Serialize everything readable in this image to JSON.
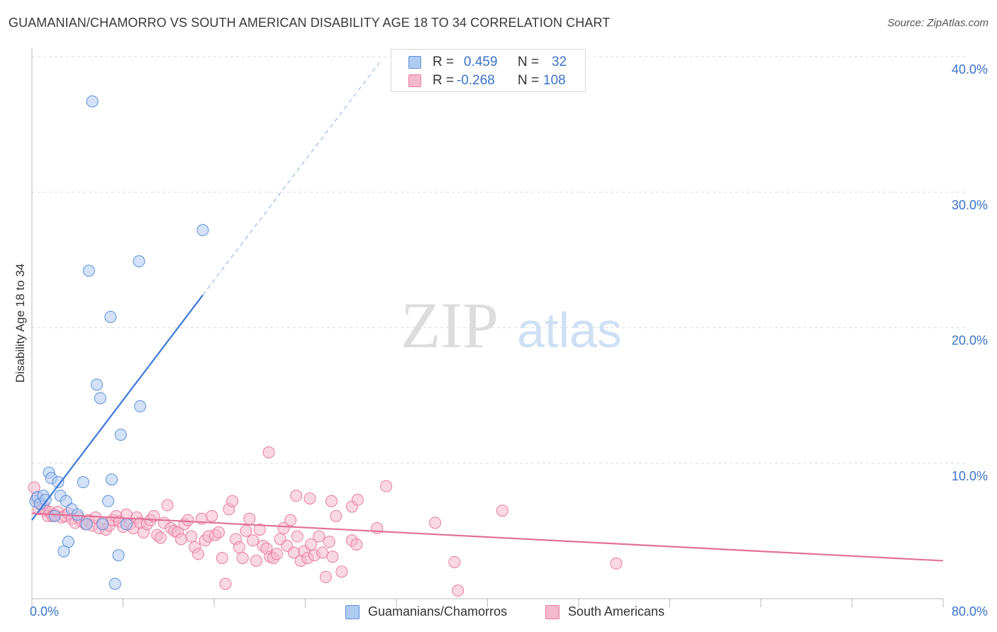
{
  "header": {
    "title": "GUAMANIAN/CHAMORRO VS SOUTH AMERICAN DISABILITY AGE 18 TO 34 CORRELATION CHART",
    "source": "Source: ZipAtlas.com"
  },
  "legend": {
    "r_label": "R =",
    "n_label": "N =",
    "rows": [
      {
        "r": "0.459",
        "n": "32"
      },
      {
        "r": "-0.268",
        "n": "108"
      }
    ]
  },
  "bottom_legend": [
    "Guamanians/Chamorros",
    "South Americans"
  ],
  "watermark": {
    "zip": "ZIP",
    "atlas": "atlas"
  },
  "colors": {
    "blue_fill": "#aecbf2",
    "blue_stroke": "#5e8fd6",
    "blue_line": "#3c78d8",
    "pink_fill": "#f6b8cc",
    "pink_stroke": "#e87ba0",
    "pink_line": "#e2709a",
    "value_text": "#3b73c8",
    "grid": "#dddddd"
  },
  "chart_data": {
    "type": "scatter",
    "title": "GUAMANIAN/CHAMORRO VS SOUTH AMERICAN DISABILITY AGE 18 TO 34 CORRELATION CHART",
    "xlabel": "",
    "ylabel": "Disability Age 18 to 34",
    "xlim": [
      0,
      80
    ],
    "ylim": [
      0,
      40
    ],
    "x_tick_labels": [
      "0.0%",
      "80.0%"
    ],
    "y_ticks": [
      10,
      20,
      30,
      40
    ],
    "y_tick_labels": [
      "10.0%",
      "20.0%",
      "30.0%",
      "40.0%"
    ],
    "grid": true,
    "legend_position": "top-center",
    "series": [
      {
        "name": "Guamanians/Chamorros",
        "r": 0.459,
        "n": 32,
        "color": "blue",
        "trend": {
          "x0": 0,
          "y0": 5.8,
          "x1": 15,
          "y1": 22.4,
          "dash_to_x": 30.5
        },
        "points": [
          [
            0.3,
            7.2
          ],
          [
            0.5,
            7.5
          ],
          [
            0.7,
            7.0
          ],
          [
            1.0,
            7.6
          ],
          [
            1.2,
            7.3
          ],
          [
            1.5,
            9.3
          ],
          [
            1.7,
            8.9
          ],
          [
            2.0,
            6.1
          ],
          [
            2.3,
            8.6
          ],
          [
            2.5,
            7.6
          ],
          [
            3.0,
            7.2
          ],
          [
            3.2,
            4.2
          ],
          [
            3.5,
            6.6
          ],
          [
            4.0,
            6.2
          ],
          [
            4.5,
            8.6
          ],
          [
            4.8,
            5.5
          ],
          [
            5.0,
            24.2
          ],
          [
            5.3,
            36.7
          ],
          [
            5.7,
            15.8
          ],
          [
            6.0,
            14.8
          ],
          [
            6.2,
            5.5
          ],
          [
            6.7,
            7.2
          ],
          [
            6.9,
            20.8
          ],
          [
            7.0,
            8.8
          ],
          [
            7.3,
            1.1
          ],
          [
            7.6,
            3.2
          ],
          [
            7.8,
            12.1
          ],
          [
            8.3,
            5.5
          ],
          [
            9.4,
            24.9
          ],
          [
            9.5,
            14.2
          ],
          [
            15.0,
            27.2
          ],
          [
            2.8,
            3.5
          ]
        ]
      },
      {
        "name": "South Americans",
        "r": -0.268,
        "n": 108,
        "color": "pink",
        "trend": {
          "x0": 0,
          "y0": 6.3,
          "x1": 80,
          "y1": 2.8
        },
        "points": [
          [
            0.2,
            8.2
          ],
          [
            0.4,
            7.4
          ],
          [
            0.6,
            6.6
          ],
          [
            0.8,
            7.0
          ],
          [
            1.0,
            6.9
          ],
          [
            1.2,
            6.5
          ],
          [
            1.4,
            6.1
          ],
          [
            1.6,
            6.4
          ],
          [
            1.8,
            6.1
          ],
          [
            2.0,
            6.2
          ],
          [
            2.3,
            6.4
          ],
          [
            2.6,
            6.0
          ],
          [
            2.9,
            6.1
          ],
          [
            3.2,
            6.3
          ],
          [
            3.5,
            5.9
          ],
          [
            3.8,
            5.6
          ],
          [
            4.1,
            6.0
          ],
          [
            4.4,
            5.7
          ],
          [
            4.7,
            5.5
          ],
          [
            5.0,
            5.8
          ],
          [
            5.3,
            5.4
          ],
          [
            5.6,
            6.0
          ],
          [
            5.9,
            5.2
          ],
          [
            6.2,
            5.6
          ],
          [
            6.5,
            5.1
          ],
          [
            6.8,
            5.4
          ],
          [
            7.1,
            5.8
          ],
          [
            7.4,
            6.1
          ],
          [
            7.7,
            5.7
          ],
          [
            8.0,
            5.3
          ],
          [
            8.3,
            6.2
          ],
          [
            8.6,
            5.5
          ],
          [
            8.9,
            5.2
          ],
          [
            9.2,
            6.0
          ],
          [
            9.5,
            5.6
          ],
          [
            9.8,
            4.9
          ],
          [
            10.1,
            5.5
          ],
          [
            10.4,
            5.8
          ],
          [
            10.7,
            6.1
          ],
          [
            11.0,
            4.7
          ],
          [
            11.3,
            4.5
          ],
          [
            11.6,
            5.6
          ],
          [
            11.9,
            6.9
          ],
          [
            12.2,
            5.2
          ],
          [
            12.5,
            5.0
          ],
          [
            12.8,
            4.9
          ],
          [
            13.1,
            4.4
          ],
          [
            13.4,
            5.5
          ],
          [
            13.7,
            5.8
          ],
          [
            14.0,
            4.6
          ],
          [
            14.3,
            3.8
          ],
          [
            14.6,
            3.3
          ],
          [
            14.9,
            5.9
          ],
          [
            15.2,
            4.3
          ],
          [
            15.5,
            4.6
          ],
          [
            15.8,
            6.1
          ],
          [
            16.1,
            4.7
          ],
          [
            16.4,
            4.9
          ],
          [
            16.7,
            3.0
          ],
          [
            17.0,
            1.1
          ],
          [
            17.3,
            6.6
          ],
          [
            17.6,
            7.2
          ],
          [
            17.9,
            4.4
          ],
          [
            18.2,
            3.8
          ],
          [
            18.5,
            3.0
          ],
          [
            18.8,
            5.0
          ],
          [
            19.1,
            5.9
          ],
          [
            19.4,
            4.3
          ],
          [
            19.7,
            2.8
          ],
          [
            20.0,
            5.1
          ],
          [
            20.3,
            3.9
          ],
          [
            20.6,
            3.7
          ],
          [
            20.9,
            3.1
          ],
          [
            21.2,
            3.0
          ],
          [
            21.5,
            3.3
          ],
          [
            21.8,
            4.4
          ],
          [
            22.1,
            5.2
          ],
          [
            22.4,
            3.9
          ],
          [
            22.7,
            5.8
          ],
          [
            23.0,
            3.4
          ],
          [
            23.3,
            4.6
          ],
          [
            23.6,
            2.8
          ],
          [
            23.9,
            3.5
          ],
          [
            24.2,
            3.0
          ],
          [
            24.5,
            4.0
          ],
          [
            24.8,
            3.2
          ],
          [
            25.2,
            4.6
          ],
          [
            25.5,
            3.4
          ],
          [
            25.8,
            1.6
          ],
          [
            26.1,
            4.2
          ],
          [
            26.4,
            3.1
          ],
          [
            26.7,
            6.1
          ],
          [
            27.2,
            2.0
          ],
          [
            28.1,
            6.8
          ],
          [
            31.1,
            8.3
          ],
          [
            23.2,
            7.6
          ],
          [
            24.4,
            7.4
          ],
          [
            20.8,
            10.8
          ],
          [
            26.3,
            7.2
          ],
          [
            28.1,
            4.3
          ],
          [
            28.5,
            4.0
          ],
          [
            28.6,
            7.3
          ],
          [
            30.3,
            5.2
          ],
          [
            35.4,
            5.6
          ],
          [
            37.1,
            2.7
          ],
          [
            37.4,
            0.6
          ],
          [
            41.3,
            6.5
          ],
          [
            51.3,
            2.6
          ]
        ]
      }
    ]
  }
}
